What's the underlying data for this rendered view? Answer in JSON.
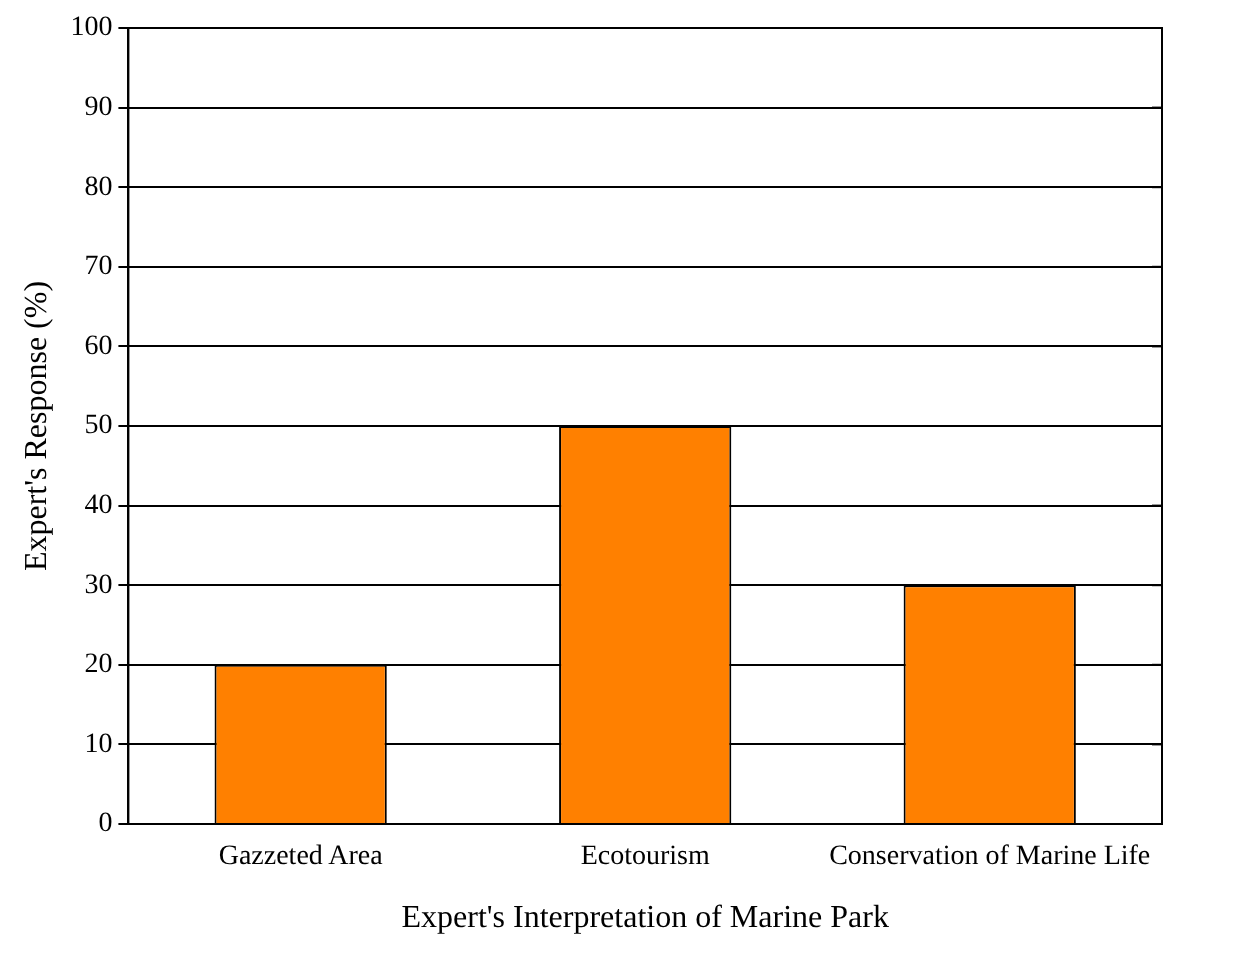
{
  "chart_data": {
    "type": "bar",
    "xlabel": "Expert's Interpretation of Marine Park",
    "ylabel": "Expert's Response (%)",
    "categories": [
      "Gazzeted Area",
      "Ecotourism",
      "Conservation of Marine Life"
    ],
    "values": [
      20,
      50,
      30
    ],
    "color": "#ff8000",
    "ylim": [
      0,
      100
    ],
    "yticks": [
      0,
      10,
      20,
      30,
      40,
      50,
      60,
      70,
      80,
      90,
      100
    ],
    "grid": "y",
    "legend": false
  }
}
